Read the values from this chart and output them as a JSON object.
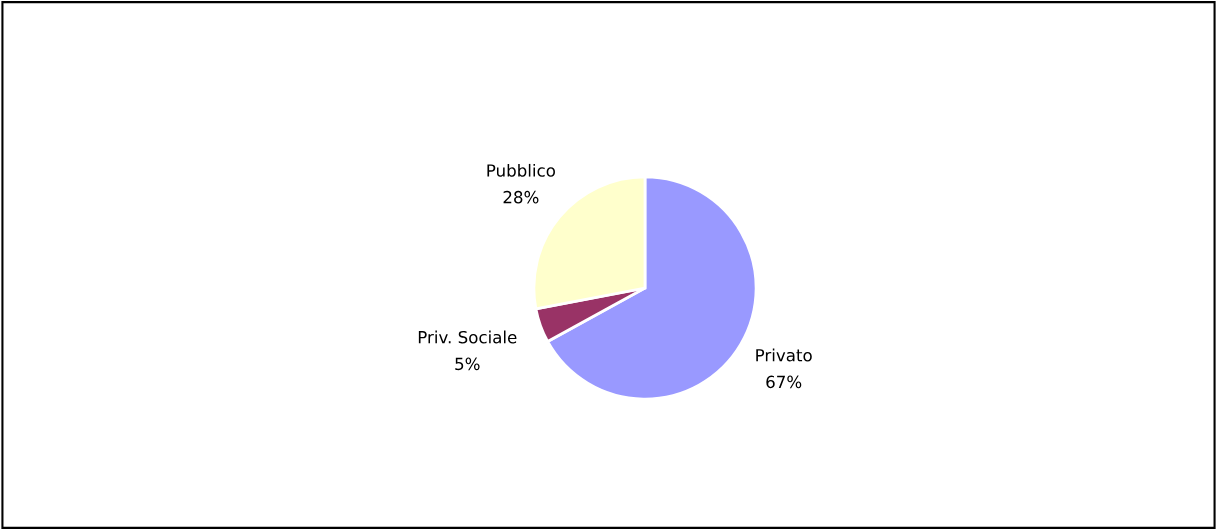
{
  "chart_data": {
    "type": "pie",
    "categories": [
      "Privato",
      "Priv. Sociale",
      "Pubblico"
    ],
    "values": [
      67,
      5,
      28
    ],
    "value_labels": [
      "67%",
      "5%",
      "28%"
    ],
    "colors": [
      "#9999ff",
      "#993366",
      "#ffffcc"
    ]
  }
}
